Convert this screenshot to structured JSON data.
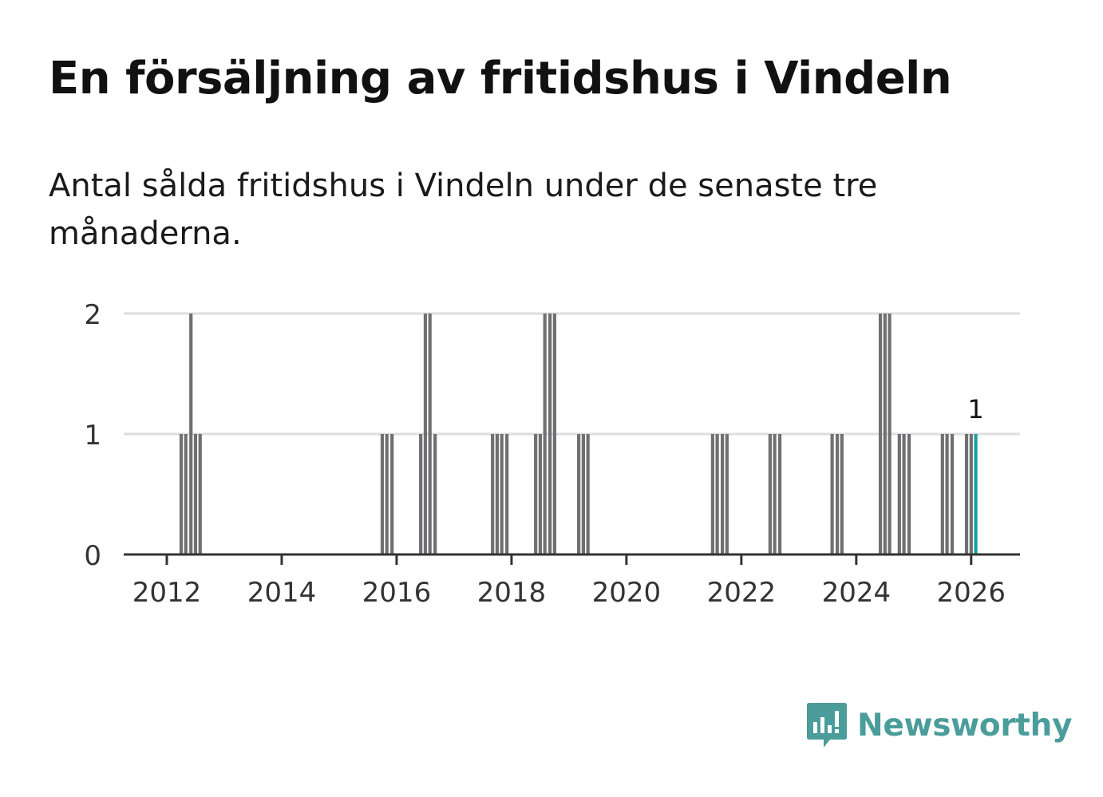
{
  "title": "En försäljning av fritidshus i Vindeln",
  "subtitle": "Antal sålda fritidshus i Vindeln under de senaste tre månaderna.",
  "brand": {
    "name": "Newsworthy",
    "logo_icon": "bar-chart-speech-bubble-icon",
    "color": "#4a9d9a"
  },
  "chart_data": {
    "type": "bar",
    "xlabel": "",
    "ylabel": "",
    "xlim": [
      2011.25,
      2026.85
    ],
    "ylim": [
      0,
      2
    ],
    "x_ticks": [
      2012,
      2014,
      2016,
      2018,
      2020,
      2022,
      2024,
      2026
    ],
    "y_ticks": [
      0,
      1,
      2
    ],
    "grid": true,
    "bar_color": "#707072",
    "highlight_color": "#19a0a3",
    "series": [
      {
        "x": [
          2012.25,
          2012.33,
          2012.42,
          2012.5,
          2012.58,
          2015.75,
          2015.83,
          2015.92,
          2016.42,
          2016.5,
          2016.58,
          2016.67,
          2017.67,
          2017.75,
          2017.83,
          2017.92,
          2018.42,
          2018.5,
          2018.58,
          2018.67,
          2018.75,
          2019.17,
          2019.25,
          2019.33,
          2021.5,
          2021.58,
          2021.67,
          2021.75,
          2022.5,
          2022.58,
          2022.67,
          2023.58,
          2023.67,
          2023.75,
          2024.42,
          2024.5,
          2024.58,
          2024.75,
          2024.83,
          2024.92,
          2025.5,
          2025.58,
          2025.67,
          2025.92,
          2026.0,
          2026.08
        ],
        "values": [
          1,
          1,
          2,
          1,
          1,
          1,
          1,
          1,
          1,
          2,
          2,
          1,
          1,
          1,
          1,
          1,
          1,
          1,
          2,
          2,
          2,
          1,
          1,
          1,
          1,
          1,
          1,
          1,
          1,
          1,
          1,
          1,
          1,
          1,
          2,
          2,
          2,
          1,
          1,
          1,
          1,
          1,
          1,
          1,
          1,
          1
        ]
      }
    ],
    "highlight_label": "1"
  }
}
